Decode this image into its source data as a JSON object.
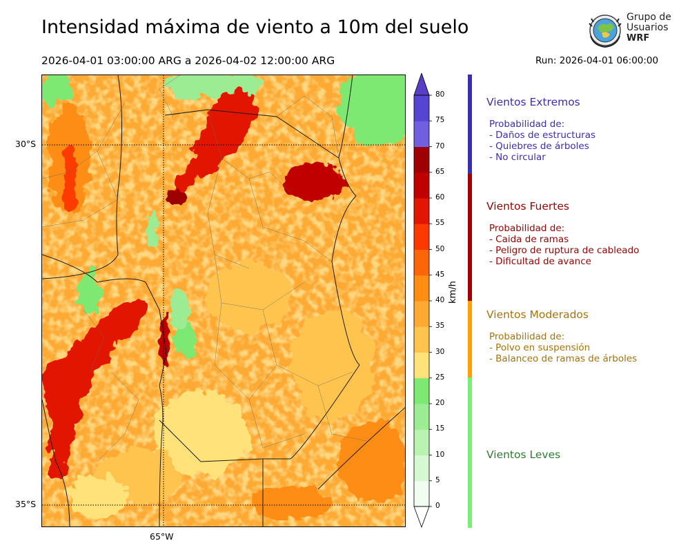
{
  "header": {
    "title": "Intensidad máxima de viento a 10m del suelo",
    "date_range": "2026-04-01 03:00:00 ARG  a  2026-04-02 12:00:00 ARG",
    "run": "Run: 2026-04-01 06:00:00"
  },
  "logo": {
    "line1": "Grupo de",
    "line2": "Usuarios",
    "line3": "WRF"
  },
  "map": {
    "lat_labels": [
      "30°S",
      "35°S"
    ],
    "lon_labels": [
      "65°W"
    ],
    "field": "wind speed max, 10 m"
  },
  "colorbar": {
    "unit": "km/h",
    "ticks": [
      "0",
      "5",
      "10",
      "15",
      "20",
      "25",
      "30",
      "35",
      "40",
      "45",
      "50",
      "55",
      "60",
      "65",
      "70",
      "75",
      "80"
    ],
    "colors": [
      "#f0fdf0",
      "#d6f8d2",
      "#b9f2b1",
      "#9bec92",
      "#7de872",
      "#ffe27a",
      "#ffc44d",
      "#fcaa34",
      "#fe8d12",
      "#fc6508",
      "#fb3a02",
      "#e21703",
      "#c00000",
      "#9e0005",
      "#7060e0",
      "#5644d2",
      "#4227b6"
    ],
    "arrow_colors": {
      "min": "#ffffff",
      "max": "#5a3dc6"
    }
  },
  "categories": [
    {
      "title": "Vientos Extremos",
      "color": "#3d2db0",
      "bar_color": "#3b2fae",
      "lines": [
        " Probabilidad de:",
        "- Daños de estructuras",
        "- Quiebres de árboles",
        "- No circular"
      ]
    },
    {
      "title": "Vientos Fuertes",
      "color": "#9b0000",
      "bar_color": "#a00000",
      "lines": [
        " Probabilidad de:",
        "- Caida de ramas",
        "- Peligro de ruptura de cableado",
        "- Dificultad de avance"
      ]
    },
    {
      "title": "Vientos Moderados",
      "color": "#a8720a",
      "bar_color": "#ffa000",
      "lines": [
        " Probabilidad de:",
        "- Polvo en suspensión",
        "- Balanceo de ramas de árboles"
      ]
    },
    {
      "title": "Vientos Leves",
      "color": "#2e7d32",
      "bar_color": "#78f078",
      "lines": []
    }
  ]
}
